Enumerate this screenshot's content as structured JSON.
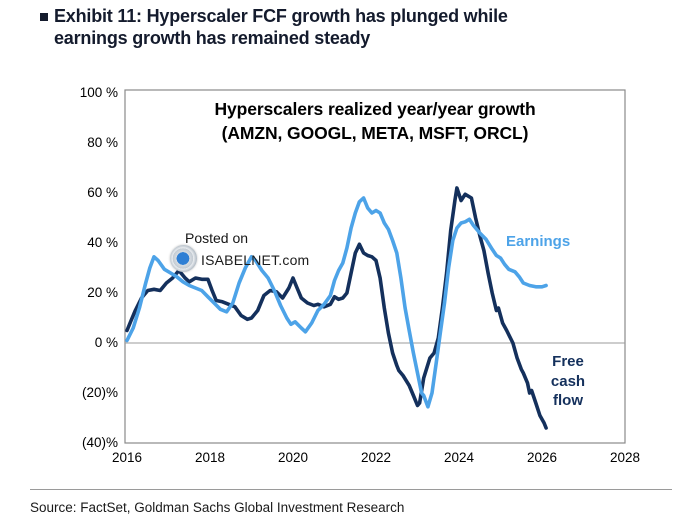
{
  "page": {
    "exhibit_title_line1": "Exhibit 11: Hyperscaler FCF growth has plunged while",
    "exhibit_title_line2": "earnings growth has remained steady",
    "source": "Source: FactSet, Goldman Sachs Global Investment Research"
  },
  "watermark": {
    "line1": "Posted on",
    "line2": "ISABELNET.com",
    "logo": "isabelnet-globe-logo"
  },
  "colors": {
    "free_cash_flow_line": "#14305c",
    "earnings_line": "#4da3e8",
    "zero_line": "#9b9b9b",
    "plot_border": "#8a8a8a",
    "title_text": "#141b2d"
  },
  "chart_data": {
    "type": "line",
    "title_line1": "Hyperscalers realized year/year growth",
    "title_line2": "(AMZN, GOOGL, META, MSFT, ORCL)",
    "xlabel": "",
    "ylabel": "",
    "xlim": [
      2016,
      2028
    ],
    "ylim": [
      -40,
      101
    ],
    "grid": "zero-line-only",
    "legend_position": "inline-labels-on-chart",
    "x_ticks": [
      {
        "label": "2016",
        "year": 2016
      },
      {
        "label": "2018",
        "year": 2018
      },
      {
        "label": "2020",
        "year": 2020
      },
      {
        "label": "2022",
        "year": 2022
      },
      {
        "label": "2024",
        "year": 2024
      },
      {
        "label": "2026",
        "year": 2026
      },
      {
        "label": "2028",
        "year": 2028
      }
    ],
    "y_ticks": [
      {
        "label": "100 %",
        "value": 100
      },
      {
        "label": "80 %",
        "value": 80
      },
      {
        "label": "60 %",
        "value": 60
      },
      {
        "label": "40 %",
        "value": 40
      },
      {
        "label": "20 %",
        "value": 20
      },
      {
        "label": "0 %",
        "value": 0
      },
      {
        "label": "(20)%",
        "value": -20
      },
      {
        "label": "(40)%",
        "value": -40
      }
    ],
    "series": [
      {
        "name": "Free cash flow",
        "label_lines": [
          "Free",
          "cash",
          "flow"
        ],
        "color": "#14305c",
        "points": [
          [
            2016.0,
            5
          ],
          [
            2016.1,
            9
          ],
          [
            2016.2,
            13
          ],
          [
            2016.35,
            18
          ],
          [
            2016.5,
            21
          ],
          [
            2016.65,
            21.5
          ],
          [
            2016.8,
            21
          ],
          [
            2016.95,
            24
          ],
          [
            2017.1,
            26
          ],
          [
            2017.25,
            29
          ],
          [
            2017.4,
            26
          ],
          [
            2017.5,
            24.5
          ],
          [
            2017.65,
            26
          ],
          [
            2017.8,
            25.5
          ],
          [
            2017.95,
            25.5
          ],
          [
            2018.05,
            21
          ],
          [
            2018.15,
            17
          ],
          [
            2018.3,
            16.5
          ],
          [
            2018.45,
            15.5
          ],
          [
            2018.6,
            14.5
          ],
          [
            2018.75,
            11
          ],
          [
            2018.9,
            9.5
          ],
          [
            2019.0,
            10
          ],
          [
            2019.15,
            13
          ],
          [
            2019.3,
            19
          ],
          [
            2019.45,
            21
          ],
          [
            2019.6,
            20.5
          ],
          [
            2019.75,
            18
          ],
          [
            2019.9,
            22
          ],
          [
            2020.0,
            26
          ],
          [
            2020.1,
            22
          ],
          [
            2020.2,
            18
          ],
          [
            2020.35,
            16
          ],
          [
            2020.5,
            15
          ],
          [
            2020.6,
            15.5
          ],
          [
            2020.75,
            14.5
          ],
          [
            2020.9,
            15.5
          ],
          [
            2021.0,
            18.5
          ],
          [
            2021.1,
            17.5
          ],
          [
            2021.2,
            18
          ],
          [
            2021.3,
            20
          ],
          [
            2021.4,
            28
          ],
          [
            2021.5,
            36
          ],
          [
            2021.6,
            39.5
          ],
          [
            2021.7,
            36
          ],
          [
            2021.8,
            35
          ],
          [
            2021.9,
            34.5
          ],
          [
            2022.0,
            33
          ],
          [
            2022.1,
            26
          ],
          [
            2022.2,
            14
          ],
          [
            2022.3,
            4
          ],
          [
            2022.4,
            -4
          ],
          [
            2022.5,
            -9
          ],
          [
            2022.55,
            -11
          ],
          [
            2022.65,
            -13
          ],
          [
            2022.8,
            -17
          ],
          [
            2022.9,
            -21
          ],
          [
            2023.0,
            -25
          ],
          [
            2023.05,
            -24
          ],
          [
            2023.15,
            -14
          ],
          [
            2023.3,
            -6
          ],
          [
            2023.4,
            -4
          ],
          [
            2023.5,
            2
          ],
          [
            2023.6,
            14
          ],
          [
            2023.7,
            28
          ],
          [
            2023.8,
            45
          ],
          [
            2023.9,
            57
          ],
          [
            2023.95,
            62
          ],
          [
            2024.05,
            57
          ],
          [
            2024.15,
            59.5
          ],
          [
            2024.3,
            58
          ],
          [
            2024.4,
            50
          ],
          [
            2024.5,
            43
          ],
          [
            2024.6,
            37
          ],
          [
            2024.7,
            28
          ],
          [
            2024.8,
            20
          ],
          [
            2024.9,
            13
          ],
          [
            2024.95,
            14
          ],
          [
            2025.05,
            8
          ],
          [
            2025.15,
            5
          ],
          [
            2025.3,
            0
          ],
          [
            2025.4,
            -6
          ],
          [
            2025.5,
            -10.5
          ],
          [
            2025.55,
            -12
          ],
          [
            2025.65,
            -16
          ],
          [
            2025.7,
            -20
          ],
          [
            2025.75,
            -19
          ],
          [
            2025.85,
            -24
          ],
          [
            2025.95,
            -29
          ],
          [
            2026.05,
            -32
          ],
          [
            2026.1,
            -34
          ]
        ]
      },
      {
        "name": "Earnings",
        "label": "Earnings",
        "color": "#4da3e8",
        "points": [
          [
            2016.0,
            1
          ],
          [
            2016.15,
            6
          ],
          [
            2016.3,
            14
          ],
          [
            2016.45,
            24
          ],
          [
            2016.55,
            30
          ],
          [
            2016.65,
            34.5
          ],
          [
            2016.75,
            33
          ],
          [
            2016.9,
            29.5
          ],
          [
            2017.05,
            28
          ],
          [
            2017.2,
            26.5
          ],
          [
            2017.35,
            24.5
          ],
          [
            2017.5,
            23
          ],
          [
            2017.65,
            22
          ],
          [
            2017.8,
            21
          ],
          [
            2017.95,
            18.5
          ],
          [
            2018.1,
            16
          ],
          [
            2018.25,
            13.5
          ],
          [
            2018.4,
            12.5
          ],
          [
            2018.55,
            16
          ],
          [
            2018.7,
            24
          ],
          [
            2018.85,
            30
          ],
          [
            2019.0,
            34.5
          ],
          [
            2019.1,
            33
          ],
          [
            2019.25,
            29
          ],
          [
            2019.4,
            26
          ],
          [
            2019.55,
            21
          ],
          [
            2019.7,
            15
          ],
          [
            2019.85,
            10
          ],
          [
            2019.95,
            7.5
          ],
          [
            2020.05,
            8.5
          ],
          [
            2020.2,
            6
          ],
          [
            2020.3,
            4.5
          ],
          [
            2020.45,
            8
          ],
          [
            2020.6,
            13
          ],
          [
            2020.75,
            15.5
          ],
          [
            2020.9,
            19
          ],
          [
            2021.0,
            25
          ],
          [
            2021.1,
            29
          ],
          [
            2021.2,
            32
          ],
          [
            2021.3,
            38
          ],
          [
            2021.4,
            46
          ],
          [
            2021.5,
            52
          ],
          [
            2021.6,
            56.5
          ],
          [
            2021.7,
            58
          ],
          [
            2021.8,
            54
          ],
          [
            2021.9,
            52
          ],
          [
            2022.0,
            53
          ],
          [
            2022.1,
            52
          ],
          [
            2022.2,
            48
          ],
          [
            2022.3,
            45.5
          ],
          [
            2022.4,
            41
          ],
          [
            2022.5,
            36
          ],
          [
            2022.6,
            26
          ],
          [
            2022.7,
            14
          ],
          [
            2022.8,
            5
          ],
          [
            2022.9,
            -4
          ],
          [
            2023.0,
            -12
          ],
          [
            2023.1,
            -20
          ],
          [
            2023.15,
            -21
          ],
          [
            2023.25,
            -25.5
          ],
          [
            2023.35,
            -20
          ],
          [
            2023.45,
            -8
          ],
          [
            2023.55,
            4
          ],
          [
            2023.65,
            16
          ],
          [
            2023.75,
            30
          ],
          [
            2023.85,
            41
          ],
          [
            2023.95,
            46
          ],
          [
            2024.05,
            48
          ],
          [
            2024.15,
            48.5
          ],
          [
            2024.25,
            49.5
          ],
          [
            2024.35,
            47
          ],
          [
            2024.5,
            44
          ],
          [
            2024.65,
            41.5
          ],
          [
            2024.8,
            37.5
          ],
          [
            2024.9,
            35
          ],
          [
            2025.0,
            34
          ],
          [
            2025.1,
            31.5
          ],
          [
            2025.2,
            29.5
          ],
          [
            2025.35,
            28.5
          ],
          [
            2025.45,
            26.5
          ],
          [
            2025.55,
            24
          ],
          [
            2025.7,
            23
          ],
          [
            2025.85,
            22.5
          ],
          [
            2026.0,
            22.5
          ],
          [
            2026.1,
            23
          ]
        ]
      }
    ]
  }
}
